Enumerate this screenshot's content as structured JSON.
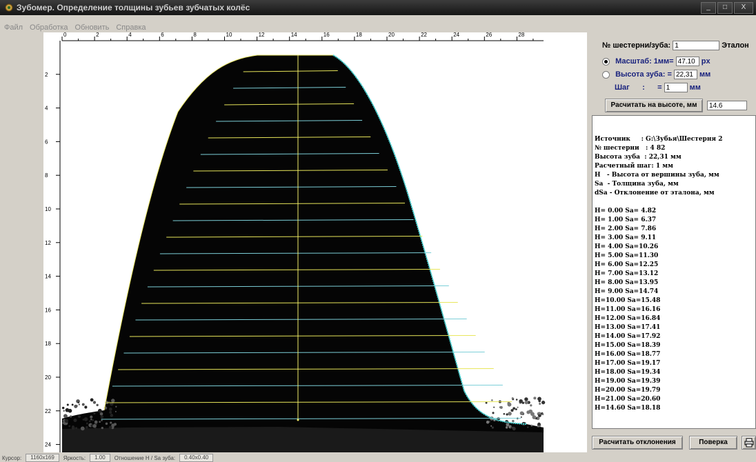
{
  "window": {
    "title": "Зубомер. Определение толщины зубьев зубчатых колёс",
    "min": "_",
    "max": "□",
    "close": "X"
  },
  "menu": [
    "Файл",
    "Обработка",
    "Обновить",
    "Справка"
  ],
  "ruler": {
    "top_labels": [
      "0",
      "2",
      "4",
      "6",
      "8",
      "10",
      "12",
      "14",
      "16",
      "18",
      "20",
      "22",
      "24",
      "26",
      "28"
    ],
    "left_labels": [
      "2",
      "4",
      "6",
      "8",
      "10",
      "12",
      "14",
      "16",
      "18",
      "20",
      "22",
      "24"
    ]
  },
  "colors": {
    "measure_line": "#e8e65a",
    "contour": "#40d8d8",
    "tooth": "#000000"
  },
  "panel": {
    "gear_label": "№ шестерни/зуба:",
    "gear_value": "1",
    "etalon_label": "Эталон",
    "scale_label": "Масштаб: 1мм=",
    "scale_value": "47.10",
    "scale_unit": "px",
    "height_label": "Высота зуба: =",
    "height_value": "22,31",
    "height_unit": "мм",
    "step_label": "Шаг      :      =",
    "step_value": "1",
    "step_unit": "мм",
    "calc_height_button": "Расчитать на высоте, мм",
    "calc_height_value": "14.6",
    "report": [
      "Источник     : G:\\Зубья\\Шестерня 2",
      "№ шестерни   : 4 82",
      "Высота зуба  : 22,31 мм",
      "Расчетный шаг: 1 мм",
      "Н   - Высота от вершины зуба, мм",
      "Sa  - Толщина зуба, мм",
      "dSa - Отклонение от эталона, мм",
      "",
      "H= 0.00 Sa= 4.82",
      "H= 1.00 Sa= 6.37",
      "H= 2.00 Sa= 7.86",
      "H= 3.00 Sa= 9.11",
      "H= 4.00 Sa=10.26",
      "H= 5.00 Sa=11.30",
      "H= 6.00 Sa=12.25",
      "H= 7.00 Sa=13.12",
      "H= 8.00 Sa=13.95",
      "H= 9.00 Sa=14.74",
      "H=10.00 Sa=15.48",
      "H=11.00 Sa=16.16",
      "H=12.00 Sa=16.84",
      "H=13.00 Sa=17.41",
      "H=14.00 Sa=17.92",
      "H=15.00 Sa=18.39",
      "H=16.00 Sa=18.77",
      "H=17.00 Sa=19.17",
      "H=18.00 Sa=19.34",
      "H=19.00 Sa=19.39",
      "H=20.00 Sa=19.79",
      "H=21.00 Sa=20.60",
      "H=14.60 Sa=18.18"
    ],
    "calc_dev_button": "Расчитать отклонения",
    "verify_button": "Поверка",
    "print_icon": "printer-icon"
  },
  "status": {
    "cursor_label": "Курсор:",
    "cursor_value": "1160x169",
    "brightness_label": "Яркость:",
    "brightness_value": "1.00",
    "ratio_label": "Отношение Н / Sa зуба:",
    "ratio_value": "0.40x0.40"
  }
}
